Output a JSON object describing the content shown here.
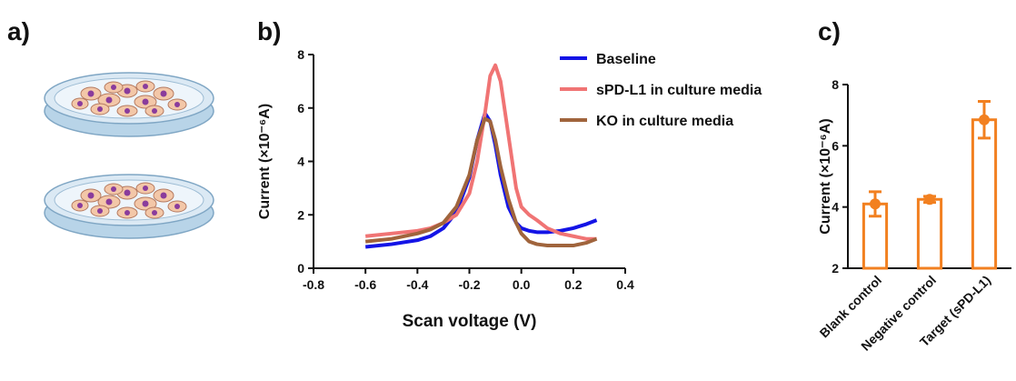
{
  "panel_labels": [
    "a)",
    "b)",
    "c)"
  ],
  "chart_data": [
    {
      "type": "line",
      "x_label": "Scan voltage (V)",
      "y_label": "Current (×10⁻⁶A)",
      "x": [
        -0.6,
        -0.5,
        -0.4,
        -0.35,
        -0.3,
        -0.25,
        -0.2,
        -0.17,
        -0.14,
        -0.12,
        -0.1,
        -0.08,
        -0.05,
        -0.02,
        0,
        0.03,
        0.06,
        0.1,
        0.15,
        0.2,
        0.25,
        0.29
      ],
      "series": [
        {
          "name": "Baseline",
          "color": "#1414e6",
          "values": [
            0.8,
            0.9,
            1.05,
            1.2,
            1.5,
            2.1,
            3.4,
            4.8,
            5.8,
            5.5,
            4.6,
            3.5,
            2.3,
            1.7,
            1.5,
            1.4,
            1.35,
            1.35,
            1.4,
            1.5,
            1.65,
            1.8
          ]
        },
        {
          "name": "sPD-L1 in culture media",
          "color": "#f07474",
          "values": [
            1.2,
            1.3,
            1.4,
            1.5,
            1.7,
            2.0,
            2.8,
            4.0,
            5.8,
            7.2,
            7.6,
            7.0,
            5.0,
            3.0,
            2.3,
            2.0,
            1.8,
            1.5,
            1.3,
            1.2,
            1.1,
            1.1
          ]
        },
        {
          "name": "KO in culture media",
          "color": "#a0643c",
          "values": [
            1.0,
            1.1,
            1.3,
            1.45,
            1.7,
            2.3,
            3.5,
            4.8,
            5.6,
            5.5,
            4.8,
            3.8,
            2.6,
            1.7,
            1.3,
            1.0,
            0.9,
            0.85,
            0.85,
            0.85,
            0.95,
            1.1
          ]
        }
      ],
      "xlim": [
        -0.8,
        0.4
      ],
      "xticks": [
        -0.8,
        -0.6,
        -0.4,
        -0.2,
        {
          "value": 0,
          "label": "0.0"
        },
        0.2,
        0.4
      ],
      "ylim": [
        0,
        8
      ],
      "yticks": [
        0,
        2,
        4,
        6,
        8
      ]
    },
    {
      "type": "bar",
      "y_label": "Current (×10⁻⁶A)",
      "categories": [
        "Blank control",
        "Negative control",
        "Target (sPD-L1)"
      ],
      "values": [
        4.1,
        4.25,
        6.85
      ],
      "errors": [
        0.4,
        0.1,
        0.6
      ],
      "color": "#f28020",
      "ylim": [
        2,
        8
      ],
      "yticks": [
        2,
        4,
        6,
        8
      ]
    }
  ]
}
